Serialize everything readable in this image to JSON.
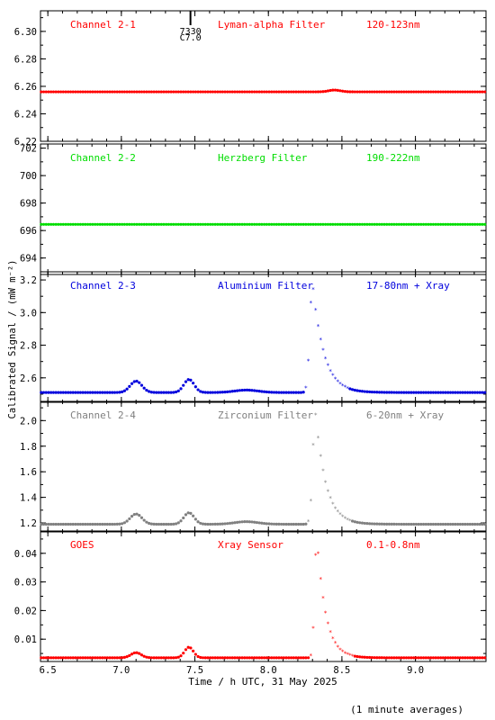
{
  "chart_data": {
    "type": "scatter",
    "ylabel": "Calibrated Signal / (mW m⁻²)",
    "xlabel": "Time / h UTC, 31 May 2025",
    "footnote": "(1 minute averages)",
    "xlim": [
      6.45,
      9.48
    ],
    "x_ticks": [
      6.5,
      7.0,
      7.5,
      8.0,
      8.5,
      9.0
    ],
    "x_tick_labels": [
      "6.5",
      "7.0",
      "7.5",
      "8.0",
      "8.5",
      "9.0"
    ],
    "flare_marker": {
      "x": 7.47,
      "label_top": "7330",
      "label_bottom": "C7.0"
    },
    "panels": [
      {
        "channel": "Channel 2-1",
        "filter": "Lyman-alpha Filter",
        "band": "120-123nm",
        "color": "#ff0000",
        "ylim": [
          6.22,
          6.315
        ],
        "yticks": [
          6.22,
          6.24,
          6.26,
          6.28,
          6.3
        ],
        "ytick_labels": [
          "6.22",
          "6.24",
          "6.26",
          "6.28",
          "6.30"
        ],
        "baseline": 6.256,
        "peaks": [
          {
            "t": 8.45,
            "a": 0.0013,
            "s": 0.04
          }
        ]
      },
      {
        "channel": "Channel 2-2",
        "filter": "Herzberg Filter",
        "band": "190-222nm",
        "color": "#00dd00",
        "ylim": [
          692.8,
          702.3
        ],
        "yticks": [
          694,
          696,
          698,
          700,
          702
        ],
        "ytick_labels": [
          "694",
          "696",
          "698",
          "700",
          "702"
        ],
        "baseline": 696.45,
        "peaks": []
      },
      {
        "channel": "Channel 2-3",
        "filter": "Aluminium Filter",
        "band": "17-80nm + Xray",
        "color": "#0000dd",
        "ylim": [
          2.45,
          3.25
        ],
        "yticks": [
          2.6,
          2.8,
          3.0,
          3.2
        ],
        "ytick_labels": [
          "2.6",
          "2.8",
          "3.0",
          "3.2"
        ],
        "baseline": 2.51,
        "peaks": [
          {
            "t": 7.1,
            "a": 0.07,
            "s": 0.04
          },
          {
            "t": 7.46,
            "a": 0.08,
            "s": 0.035
          },
          {
            "t": 7.85,
            "a": 0.015,
            "s": 0.08
          },
          {
            "t": 8.3,
            "a": 0.68,
            "s": 0.018,
            "decay": 0.075
          }
        ]
      },
      {
        "channel": "Channel 2-4",
        "filter": "Zirconium Filter",
        "band": "6-20nm + Xray",
        "color": "#808080",
        "ylim": [
          1.13,
          2.15
        ],
        "yticks": [
          1.2,
          1.4,
          1.6,
          1.8,
          2.0
        ],
        "ytick_labels": [
          "1.2",
          "1.4",
          "1.6",
          "1.8",
          "2.0"
        ],
        "baseline": 1.19,
        "peaks": [
          {
            "t": 7.1,
            "a": 0.08,
            "s": 0.04
          },
          {
            "t": 7.46,
            "a": 0.09,
            "s": 0.035
          },
          {
            "t": 7.85,
            "a": 0.02,
            "s": 0.08
          },
          {
            "t": 8.32,
            "a": 0.88,
            "s": 0.018,
            "decay": 0.07
          }
        ]
      },
      {
        "channel": "GOES",
        "filter": "Xray Sensor",
        "band": "0.1-0.8nm",
        "color": "#ff0000",
        "ylim": [
          0.0022,
          0.0478
        ],
        "yticks": [
          0.01,
          0.02,
          0.03,
          0.04
        ],
        "ytick_labels": [
          "0.01",
          "0.02",
          "0.03",
          "0.04"
        ],
        "baseline": 0.0035,
        "peaks": [
          {
            "t": 7.1,
            "a": 0.0018,
            "s": 0.035
          },
          {
            "t": 7.46,
            "a": 0.0037,
            "s": 0.03
          },
          {
            "t": 8.33,
            "a": 0.042,
            "s": 0.015,
            "decay": 0.06
          }
        ]
      }
    ]
  }
}
